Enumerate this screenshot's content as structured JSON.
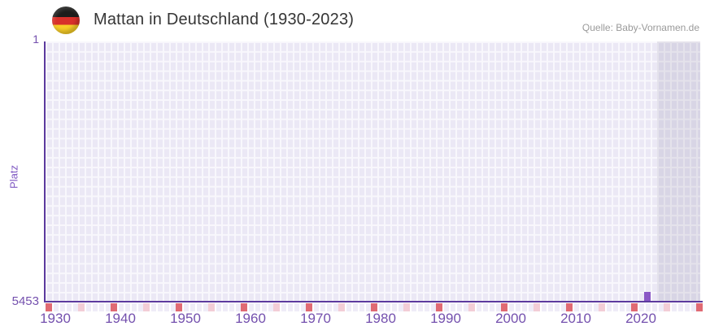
{
  "header": {
    "title": "Mattan in Deutschland (1930-2023)",
    "source": "Quelle: Baby-Vornamen.de",
    "flag_icon": "germany-flag-icon"
  },
  "chart_data": {
    "type": "bar",
    "title": "Mattan in Deutschland (1930-2023)",
    "xlabel": "",
    "ylabel": "Platz",
    "grid": true,
    "legend": "none",
    "y_axis": {
      "min": 1,
      "max": 5453,
      "inverted": true,
      "tick_labels": [
        "1",
        "5453"
      ]
    },
    "x_axis": {
      "data_start_year": 1930,
      "data_end_year": 2023,
      "plot_end_year": 2030.5,
      "ticks": [
        1930,
        1940,
        1950,
        1960,
        1970,
        1980,
        1990,
        2000,
        2010,
        2020
      ]
    },
    "series": [
      {
        "name": "Platz",
        "points": [
          {
            "year": 2022,
            "value": 5453
          }
        ]
      }
    ],
    "future_region_start_year": 2024,
    "year_markers": {
      "decade_years": [
        1930,
        1940,
        1950,
        1960,
        1970,
        1980,
        1990,
        2000,
        2010,
        2020,
        2030
      ],
      "half_decade_years": [
        1935,
        1945,
        1955,
        1965,
        1975,
        1985,
        1995,
        2005,
        2015,
        2025
      ]
    },
    "colors": {
      "bar": "#8a57c6",
      "axis_line": "#5c3a9e",
      "tick_text": "#7450ae",
      "plot_background": "#ebe8f5",
      "grid_line": "#f8f7fc",
      "future_overlay": "rgba(92,88,124,0.13)",
      "decade_marker": "#e06a73",
      "half_decade_marker": "#f3cdd6",
      "title_text": "#353535",
      "source_text": "#9a9a9a"
    }
  }
}
